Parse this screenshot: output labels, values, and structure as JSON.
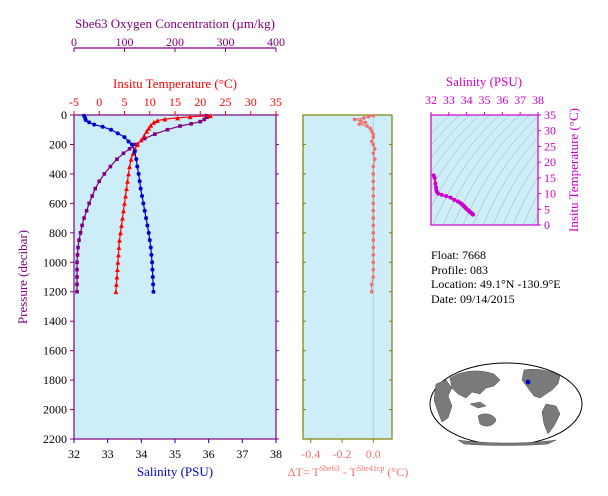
{
  "colors": {
    "oxygen": "#800080",
    "temperature": "#ff0000",
    "salinity": "#0000cc",
    "dt": "#f07070",
    "ts": "#cc00cc",
    "plot_bg": "#cdeef8",
    "main_frame": "#800080",
    "dt_frame": "#808000"
  },
  "chart_data": [
    {
      "type": "line",
      "panel": "profile",
      "title": "",
      "ylabel": "Pressure (decibar)",
      "ylim": [
        2200,
        0
      ],
      "yticks": [
        "0",
        "200",
        "400",
        "600",
        "800",
        "1000",
        "1200",
        "1400",
        "1600",
        "1800",
        "2000",
        "2200"
      ],
      "axes": {
        "oxygen": {
          "label": "Sbe63 Oxygen Concentration (µm/kg)",
          "ticks": [
            "0",
            "100",
            "200",
            "300",
            "400"
          ],
          "range": [
            0,
            400
          ]
        },
        "temperature": {
          "label": "Insitu Temperature (°C)",
          "ticks": [
            "-5",
            "0",
            "5",
            "10",
            "15",
            "20",
            "25",
            "30",
            "35"
          ],
          "range": [
            -5,
            35
          ]
        },
        "salinity": {
          "label": "Salinity (PSU)",
          "ticks": [
            "32",
            "33",
            "34",
            "35",
            "36",
            "37",
            "38"
          ],
          "range": [
            32,
            38
          ]
        }
      },
      "series": [
        {
          "variable": "oxygen",
          "marker": "square",
          "points": [
            [
              262,
              5
            ],
            [
              264,
              15
            ],
            [
              258,
              30
            ],
            [
              250,
              45
            ],
            [
              232,
              60
            ],
            [
              210,
              75
            ],
            [
              185,
              100
            ],
            [
              160,
              130
            ],
            [
              140,
              160
            ],
            [
              122,
              200
            ],
            [
              110,
              230
            ],
            [
              98,
              260
            ],
            [
              85,
              300
            ],
            [
              72,
              350
            ],
            [
              60,
              400
            ],
            [
              50,
              450
            ],
            [
              42,
              500
            ],
            [
              36,
              550
            ],
            [
              30,
              600
            ],
            [
              25,
              650
            ],
            [
              20,
              700
            ],
            [
              16,
              750
            ],
            [
              13,
              800
            ],
            [
              10,
              850
            ],
            [
              8,
              900
            ],
            [
              7,
              950
            ],
            [
              6,
              1000
            ],
            [
              6,
              1050
            ],
            [
              6,
              1100
            ],
            [
              6,
              1150
            ],
            [
              6,
              1200
            ]
          ]
        },
        {
          "variable": "temperature",
          "marker": "triangle",
          "points": [
            [
              22.0,
              5
            ],
            [
              18.0,
              12
            ],
            [
              15.5,
              20
            ],
            [
              13.0,
              28
            ],
            [
              11.5,
              38
            ],
            [
              10.8,
              50
            ],
            [
              10.2,
              70
            ],
            [
              9.8,
              90
            ],
            [
              9.4,
              110
            ],
            [
              8.9,
              140
            ],
            [
              8.3,
              170
            ],
            [
              7.6,
              200
            ],
            [
              7.1,
              230
            ],
            [
              6.7,
              260
            ],
            [
              6.3,
              300
            ],
            [
              6.0,
              350
            ],
            [
              5.8,
              400
            ],
            [
              5.6,
              450
            ],
            [
              5.4,
              500
            ],
            [
              5.2,
              550
            ],
            [
              5.0,
              600
            ],
            [
              4.8,
              650
            ],
            [
              4.6,
              700
            ],
            [
              4.4,
              750
            ],
            [
              4.2,
              800
            ],
            [
              4.0,
              850
            ],
            [
              3.9,
              900
            ],
            [
              3.8,
              950
            ],
            [
              3.7,
              1000
            ],
            [
              3.6,
              1050
            ],
            [
              3.5,
              1100
            ],
            [
              3.4,
              1150
            ],
            [
              3.3,
              1200
            ]
          ]
        },
        {
          "variable": "salinity",
          "marker": "circle",
          "points": [
            [
              32.3,
              5
            ],
            [
              32.33,
              20
            ],
            [
              32.35,
              35
            ],
            [
              32.45,
              50
            ],
            [
              32.6,
              65
            ],
            [
              32.85,
              80
            ],
            [
              33.1,
              100
            ],
            [
              33.3,
              125
            ],
            [
              33.5,
              150
            ],
            [
              33.62,
              180
            ],
            [
              33.72,
              200
            ],
            [
              33.8,
              250
            ],
            [
              33.85,
              300
            ],
            [
              33.88,
              350
            ],
            [
              33.92,
              400
            ],
            [
              33.95,
              450
            ],
            [
              33.98,
              500
            ],
            [
              34.02,
              550
            ],
            [
              34.06,
              600
            ],
            [
              34.1,
              650
            ],
            [
              34.14,
              700
            ],
            [
              34.18,
              750
            ],
            [
              34.22,
              800
            ],
            [
              34.25,
              850
            ],
            [
              34.28,
              900
            ],
            [
              34.3,
              950
            ],
            [
              34.32,
              1000
            ],
            [
              34.33,
              1050
            ],
            [
              34.34,
              1100
            ],
            [
              34.35,
              1150
            ],
            [
              34.36,
              1200
            ]
          ]
        }
      ]
    },
    {
      "type": "scatter",
      "panel": "delta_t",
      "xlabel": "ΔT= T",
      "xlabel_sup1": "Sbe63",
      "xlabel_mid": " - T",
      "xlabel_sup2": "Sbe41cp",
      "xlabel_unit": " (°C)",
      "xticks": [
        "-0.4",
        "-0.2",
        "0.0"
      ],
      "xlim": [
        -0.45,
        0.12
      ],
      "ylim": [
        2200,
        0
      ],
      "points": [
        [
          0.0,
          5
        ],
        [
          -0.03,
          12
        ],
        [
          -0.06,
          20
        ],
        [
          -0.12,
          30
        ],
        [
          -0.08,
          40
        ],
        [
          -0.05,
          50
        ],
        [
          -0.09,
          62
        ],
        [
          -0.04,
          75
        ],
        [
          -0.02,
          90
        ],
        [
          -0.01,
          110
        ],
        [
          0.0,
          130
        ],
        [
          0.0,
          150
        ],
        [
          -0.01,
          180
        ],
        [
          0.0,
          200
        ],
        [
          0.01,
          230
        ],
        [
          0.0,
          260
        ],
        [
          0.01,
          300
        ],
        [
          0.0,
          350
        ],
        [
          0.0,
          400
        ],
        [
          0.0,
          450
        ],
        [
          0.0,
          500
        ],
        [
          0.0,
          550
        ],
        [
          0.0,
          600
        ],
        [
          0.0,
          650
        ],
        [
          0.0,
          700
        ],
        [
          0.0,
          750
        ],
        [
          0.0,
          800
        ],
        [
          0.0,
          850
        ],
        [
          0.0,
          900
        ],
        [
          0.0,
          950
        ],
        [
          0.0,
          1000
        ],
        [
          0.0,
          1050
        ],
        [
          0.0,
          1100
        ],
        [
          -0.01,
          1150
        ],
        [
          -0.01,
          1200
        ]
      ]
    },
    {
      "type": "scatter",
      "panel": "ts_diagram",
      "xlabel": "Salinity (PSU)",
      "ylabel": "Insitu Temperature (°C)",
      "xticks": [
        "32",
        "33",
        "34",
        "35",
        "36",
        "37",
        "38"
      ],
      "yticks": [
        "0",
        "5",
        "10",
        "15",
        "20",
        "25",
        "30",
        "35"
      ],
      "xlim": [
        32,
        38
      ],
      "ylim": [
        0,
        35
      ],
      "points": [
        [
          32.15,
          15.8
        ],
        [
          32.2,
          15.0
        ],
        [
          32.25,
          13.2
        ],
        [
          32.28,
          12.0
        ],
        [
          32.3,
          11.2
        ],
        [
          32.32,
          10.6
        ],
        [
          32.4,
          10.0
        ],
        [
          32.6,
          9.6
        ],
        [
          32.85,
          9.2
        ],
        [
          33.1,
          8.7
        ],
        [
          33.3,
          8.0
        ],
        [
          33.5,
          7.5
        ],
        [
          33.62,
          7.1
        ],
        [
          33.72,
          6.7
        ],
        [
          33.8,
          6.3
        ],
        [
          33.85,
          6.0
        ],
        [
          33.9,
          5.7
        ],
        [
          33.95,
          5.4
        ],
        [
          34.0,
          5.1
        ],
        [
          34.06,
          4.8
        ],
        [
          34.12,
          4.5
        ],
        [
          34.18,
          4.2
        ],
        [
          34.24,
          3.9
        ],
        [
          34.28,
          3.7
        ],
        [
          34.32,
          3.5
        ],
        [
          34.36,
          3.3
        ]
      ]
    }
  ],
  "info": {
    "float": "Float:  7668",
    "profile": "Profile:  083",
    "location": "Location:  49.1°N  -130.9°E",
    "date": "Date:  09/14/2015"
  }
}
